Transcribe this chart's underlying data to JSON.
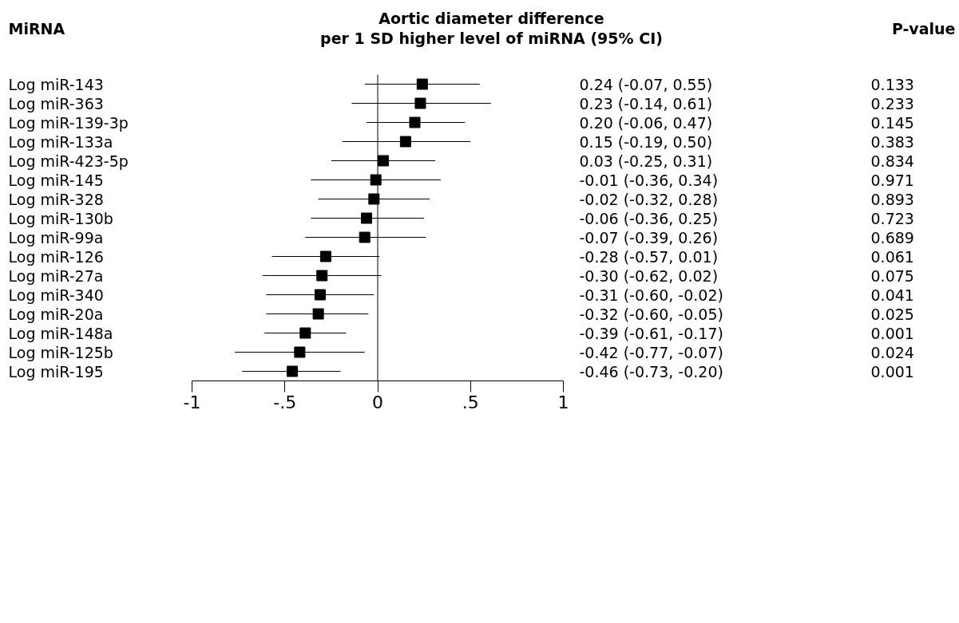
{
  "chart_data": {
    "type": "scatter",
    "orientation": "horizontal",
    "title": "Aortic diameter difference\nper 1 SD higher level of miRNA (95% CI)",
    "ylabel": "MiRNA",
    "categories": [
      "Log miR-143",
      "Log miR-363",
      "Log miR-139-3p",
      "Log miR-133a",
      "Log miR-423-5p",
      "Log miR-145",
      "Log miR-328",
      "Log miR-130b",
      "Log miR-99a",
      "Log miR-126",
      "Log miR-27a",
      "Log miR-340",
      "Log miR-20a",
      "Log miR-148a",
      "Log miR-125b",
      "Log miR-195"
    ],
    "values": [
      0.24,
      0.23,
      0.2,
      0.15,
      0.03,
      -0.01,
      -0.02,
      -0.06,
      -0.07,
      -0.28,
      -0.3,
      -0.31,
      -0.32,
      -0.39,
      -0.42,
      -0.46
    ],
    "errors": [
      [
        -0.07,
        0.55
      ],
      [
        -0.14,
        0.61
      ],
      [
        -0.06,
        0.47
      ],
      [
        -0.19,
        0.5
      ],
      [
        -0.25,
        0.31
      ],
      [
        -0.36,
        0.34
      ],
      [
        -0.32,
        0.28
      ],
      [
        -0.36,
        0.25
      ],
      [
        -0.39,
        0.26
      ],
      [
        -0.57,
        0.01
      ],
      [
        -0.62,
        0.02
      ],
      [
        -0.6,
        -0.02
      ],
      [
        -0.6,
        -0.05
      ],
      [
        -0.61,
        -0.17
      ],
      [
        -0.77,
        -0.07
      ],
      [
        -0.73,
        -0.2
      ]
    ],
    "value_labels": [
      "0.24 (-0.07, 0.55)",
      "0.23 (-0.14, 0.61)",
      "0.20 (-0.06, 0.47)",
      "0.15 (-0.19, 0.50)",
      "0.03 (-0.25, 0.31)",
      "-0.01 (-0.36, 0.34)",
      "-0.02 (-0.32, 0.28)",
      "-0.06 (-0.36, 0.25)",
      "-0.07 (-0.39, 0.26)",
      "-0.28 (-0.57, 0.01)",
      "-0.30 (-0.62, 0.02)",
      "-0.31 (-0.60, -0.02)",
      "-0.32 (-0.60, -0.05)",
      "-0.39 (-0.61, -0.17)",
      "-0.42 (-0.77, -0.07)",
      "-0.46 (-0.73, -0.20)"
    ],
    "color": "#000000",
    "marker": "square",
    "xlim": [
      -1,
      1
    ],
    "xticks": [
      {
        "value": -1,
        "label": "-1"
      },
      {
        "value": -0.5,
        "label": "-.5"
      },
      0,
      {
        "value": 0.5,
        "label": ".5"
      },
      1
    ],
    "ref_lines": [
      {
        "axis": "x",
        "value": 0,
        "color": "#000000"
      }
    ],
    "tick_labels": "x",
    "grid": false,
    "annotations": [
      "P-value",
      "0.133",
      "0.233",
      "0.145",
      "0.383",
      "0.834",
      "0.971",
      "0.893",
      "0.723",
      "0.689",
      "0.061",
      "0.075",
      "0.041",
      "0.025",
      "0.001",
      "0.024",
      "0.001"
    ]
  }
}
